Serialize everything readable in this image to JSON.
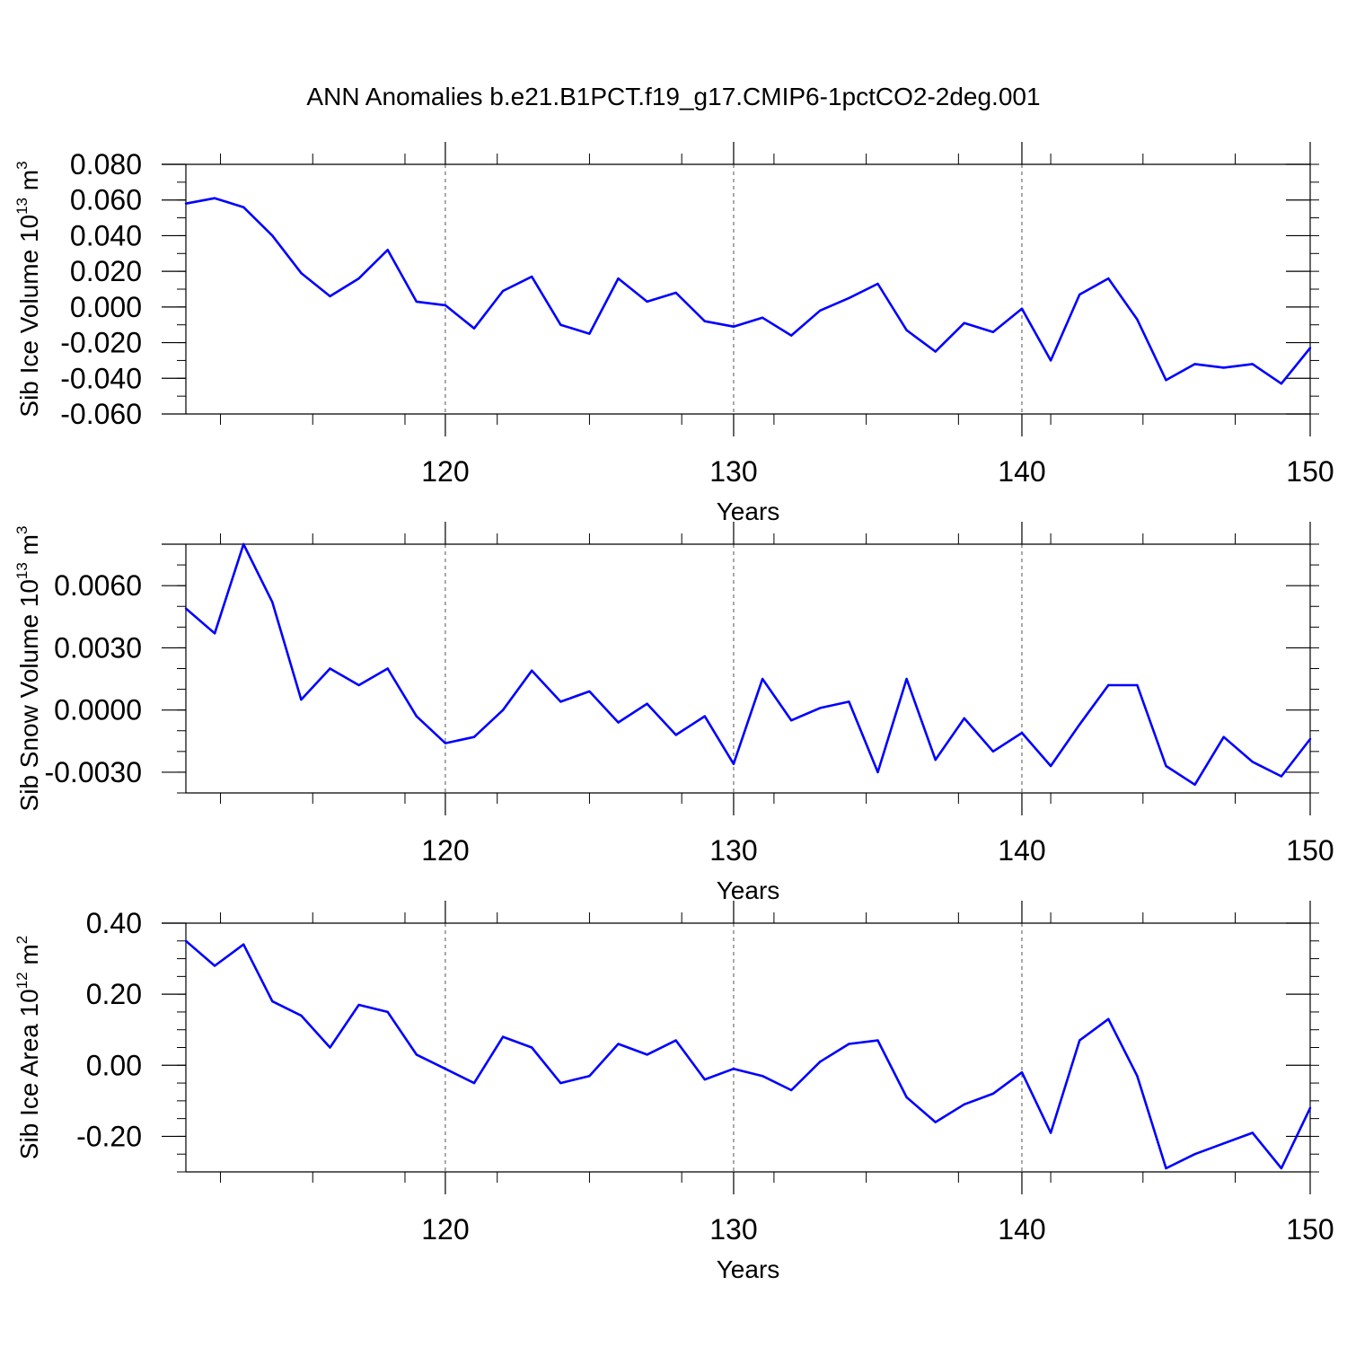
{
  "title": "ANN Anomalies b.e21.B1PCT.f19_g17.CMIP6-1pctCO2-2deg.001",
  "line_color": "#0000ff",
  "chart_data": [
    {
      "type": "line",
      "xlabel": "Years",
      "ylabel": {
        "base": "Sib Ice Volume 10",
        "exp": "13",
        "unit": " m",
        "unit_exp": "3"
      },
      "xlim": [
        111,
        150
      ],
      "ylim": [
        -0.06,
        0.08
      ],
      "xticks": [
        120,
        130,
        140,
        150
      ],
      "yticks": [
        -0.06,
        -0.04,
        -0.02,
        0.0,
        0.02,
        0.04,
        0.06,
        0.08
      ],
      "ytick_labels": [
        "-0.060",
        "-0.040",
        "-0.020",
        "0.000",
        "0.020",
        "0.040",
        "0.060",
        "0.080"
      ],
      "grid": "vertical dashed at major x ticks",
      "series": [
        {
          "x": [
            111,
            112,
            113,
            114,
            115,
            116,
            117,
            118,
            119,
            120,
            121,
            122,
            123,
            124,
            125,
            126,
            127,
            128,
            129,
            130,
            131,
            132,
            133,
            134,
            135,
            136,
            137,
            138,
            139,
            140,
            141,
            142,
            143,
            144,
            145,
            146,
            147,
            148,
            149,
            150
          ],
          "y": [
            0.058,
            0.061,
            0.056,
            0.04,
            0.019,
            0.006,
            0.016,
            0.032,
            0.003,
            0.001,
            -0.012,
            0.009,
            0.017,
            -0.01,
            -0.015,
            0.016,
            0.003,
            0.008,
            -0.008,
            -0.011,
            -0.006,
            -0.016,
            -0.002,
            0.005,
            0.013,
            -0.013,
            -0.025,
            -0.009,
            -0.014,
            -0.001,
            -0.03,
            0.007,
            0.016,
            -0.007,
            -0.041,
            -0.032,
            -0.034,
            -0.032,
            -0.043,
            -0.023
          ]
        }
      ]
    },
    {
      "type": "line",
      "xlabel": "Years",
      "ylabel": {
        "base": "Sib Snow Volume 10",
        "exp": "13",
        "unit": " m",
        "unit_exp": "3"
      },
      "xlim": [
        111,
        150
      ],
      "ylim": [
        -0.004,
        0.008
      ],
      "xticks": [
        120,
        130,
        140,
        150
      ],
      "yticks": [
        -0.003,
        0.0,
        0.003,
        0.006
      ],
      "ytick_labels": [
        "-0.0030",
        "0.0000",
        "0.0030",
        "0.0060"
      ],
      "grid": "vertical dashed at major x ticks",
      "series": [
        {
          "x": [
            111,
            112,
            113,
            114,
            115,
            116,
            117,
            118,
            119,
            120,
            121,
            122,
            123,
            124,
            125,
            126,
            127,
            128,
            129,
            130,
            131,
            132,
            133,
            134,
            135,
            136,
            137,
            138,
            139,
            140,
            141,
            142,
            143,
            144,
            145,
            146,
            147,
            148,
            149,
            150
          ],
          "y": [
            0.0049,
            0.0037,
            0.008,
            0.0052,
            0.0005,
            0.002,
            0.0012,
            0.002,
            -0.0003,
            -0.0016,
            -0.0013,
            0.0,
            0.0019,
            0.0004,
            0.0009,
            -0.0006,
            0.0003,
            -0.0012,
            -0.0003,
            -0.0026,
            0.0015,
            -0.0005,
            0.0001,
            0.0004,
            -0.003,
            0.0015,
            -0.0024,
            -0.0004,
            -0.002,
            -0.0011,
            -0.0027,
            -0.0007,
            0.0012,
            0.0012,
            -0.0027,
            -0.0036,
            -0.0013,
            -0.0025,
            -0.0032,
            -0.0014
          ]
        }
      ]
    },
    {
      "type": "line",
      "xlabel": "Years",
      "ylabel": {
        "base": "Sib Ice Area 10",
        "exp": "12",
        "unit": " m",
        "unit_exp": "2"
      },
      "xlim": [
        111,
        150
      ],
      "ylim": [
        -0.3,
        0.4
      ],
      "xticks": [
        120,
        130,
        140,
        150
      ],
      "yticks": [
        -0.2,
        0.0,
        0.2,
        0.4
      ],
      "ytick_labels": [
        "-0.20",
        "0.00",
        "0.20",
        "0.40"
      ],
      "grid": "vertical dashed at major x ticks",
      "series": [
        {
          "x": [
            111,
            112,
            113,
            114,
            115,
            116,
            117,
            118,
            119,
            120,
            121,
            122,
            123,
            124,
            125,
            126,
            127,
            128,
            129,
            130,
            131,
            132,
            133,
            134,
            135,
            136,
            137,
            138,
            139,
            140,
            141,
            142,
            143,
            144,
            145,
            146,
            147,
            148,
            149,
            150
          ],
          "y": [
            0.35,
            0.28,
            0.34,
            0.18,
            0.14,
            0.05,
            0.17,
            0.15,
            0.03,
            -0.01,
            -0.05,
            0.08,
            0.05,
            -0.05,
            -0.03,
            0.06,
            0.03,
            0.07,
            -0.04,
            -0.01,
            -0.03,
            -0.07,
            0.01,
            0.06,
            0.07,
            -0.09,
            -0.16,
            -0.11,
            -0.08,
            -0.02,
            -0.19,
            0.07,
            0.13,
            -0.03,
            -0.29,
            -0.25,
            -0.22,
            -0.19,
            -0.29,
            -0.12
          ]
        }
      ]
    }
  ]
}
